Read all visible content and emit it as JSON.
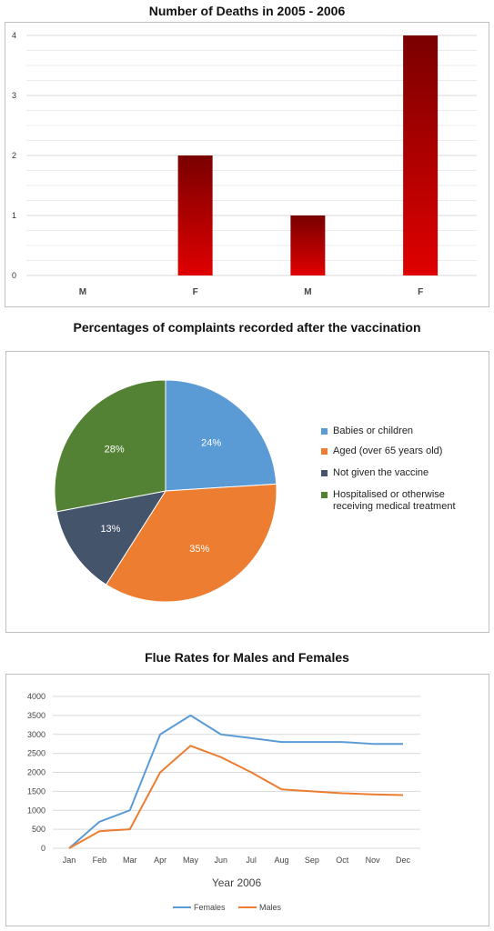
{
  "colors": {
    "bar_dark": "#7a0000",
    "bar_light": "#e00000",
    "pie": [
      "#5b9bd5",
      "#ed7d31",
      "#44546a",
      "#548235"
    ],
    "females": "#5b9bd5",
    "males": "#ed7d31"
  },
  "chart_data": [
    {
      "type": "bar",
      "title": "Number of Deaths in 2005 - 2006",
      "categories": [
        "M",
        "F",
        "M",
        "F"
      ],
      "values": [
        0,
        2,
        1,
        4
      ],
      "ylim": [
        0,
        4
      ],
      "yticks": [
        "0",
        "1",
        "2",
        "3",
        "4"
      ],
      "grid": true
    },
    {
      "type": "pie",
      "title": "Percentages of complaints recorded after the vaccination",
      "labels": [
        "Babies or children",
        "Aged (over 65 years old)",
        "Not given the vaccine",
        "Hospitalised or otherwise receiving medical treatment"
      ],
      "legend_lines": [
        [
          "Babies or children"
        ],
        [
          "Aged (over 65 years old)"
        ],
        [
          "Not given the vaccine"
        ],
        [
          "Hospitalised or otherwise",
          "receiving medical treatment"
        ]
      ],
      "values": [
        24,
        35,
        13,
        28
      ],
      "value_labels": [
        "24%",
        "35%",
        "13%",
        "28%"
      ],
      "legend": "right"
    },
    {
      "type": "line",
      "title": "Flue Rates for Males and Females",
      "xlabel": "Year 2006",
      "categories": [
        "Jan",
        "Feb",
        "Mar",
        "Apr",
        "May",
        "Jun",
        "Jul",
        "Aug",
        "Sep",
        "Oct",
        "Nov",
        "Dec"
      ],
      "ylim": [
        0,
        4000
      ],
      "yticks": [
        "0",
        "500",
        "1000",
        "1500",
        "2000",
        "2500",
        "3000",
        "3500",
        "4000"
      ],
      "series": [
        {
          "name": "Females",
          "values": [
            0,
            700,
            1000,
            3000,
            3500,
            3000,
            2900,
            2800,
            2800,
            2800,
            2750,
            2750
          ]
        },
        {
          "name": "Males",
          "values": [
            0,
            450,
            500,
            2000,
            2700,
            2400,
            2000,
            1550,
            1500,
            1450,
            1420,
            1400
          ]
        }
      ],
      "legend": "bottom",
      "grid": true
    }
  ]
}
